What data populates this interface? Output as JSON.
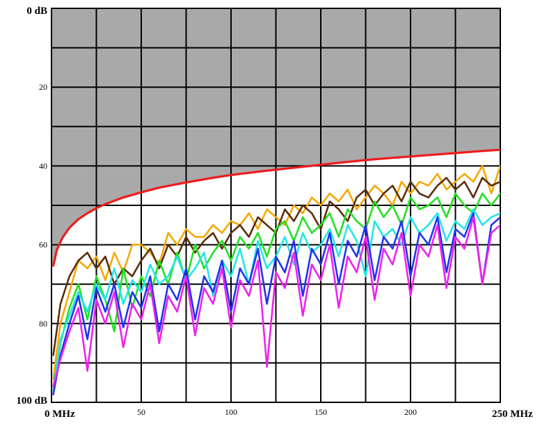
{
  "chart_data": {
    "type": "line",
    "title": "",
    "xlabel": "",
    "ylabel": "",
    "x_unit": "MHz",
    "y_unit": "dB",
    "xlim": [
      0,
      250
    ],
    "ylim": [
      0,
      100
    ],
    "y_inverted": true,
    "grid": true,
    "legend": "none",
    "y_ticks": [
      {
        "value": 0,
        "label": "0 dB"
      },
      {
        "value": 20,
        "label": "20"
      },
      {
        "value": 40,
        "label": "40"
      },
      {
        "value": 60,
        "label": "60"
      },
      {
        "value": 80,
        "label": "80"
      },
      {
        "value": 100,
        "label": "100 dB"
      }
    ],
    "x_ticks": [
      {
        "value": 0,
        "label": "0 MHz"
      },
      {
        "value": 50,
        "label": "50"
      },
      {
        "value": 100,
        "label": "100"
      },
      {
        "value": 150,
        "label": "150"
      },
      {
        "value": 200,
        "label": "200"
      },
      {
        "value": 250,
        "label": "250 MHz"
      }
    ],
    "limit": {
      "color": "#ee1c1c",
      "x": [
        1,
        3,
        6,
        10,
        15,
        20,
        25,
        30,
        40,
        50,
        60,
        75,
        90,
        100,
        120,
        140,
        160,
        180,
        200,
        220,
        240,
        250
      ],
      "y": [
        65.3,
        61.3,
        58.3,
        55.7,
        53.5,
        52.0,
        50.7,
        49.7,
        48.0,
        46.7,
        45.5,
        44.2,
        43.0,
        42.3,
        41.2,
        40.2,
        39.2,
        38.3,
        37.6,
        36.9,
        36.2,
        35.9
      ]
    },
    "series": [
      {
        "color": "#f5a800",
        "x": [
          1,
          5,
          10,
          15,
          20,
          25,
          30,
          35,
          40,
          45,
          50,
          55,
          60,
          65,
          70,
          75,
          80,
          85,
          90,
          95,
          100,
          105,
          110,
          115,
          120,
          125,
          130,
          135,
          140,
          145,
          150,
          155,
          160,
          165,
          170,
          175,
          180,
          185,
          190,
          195,
          200,
          205,
          210,
          215,
          220,
          225,
          230,
          235,
          240,
          245,
          250
        ],
        "y": [
          94,
          80,
          72,
          64,
          66,
          63,
          69,
          62,
          67,
          60,
          60,
          62,
          65,
          57,
          60,
          56,
          58,
          58,
          55,
          57,
          54,
          55,
          52,
          56,
          51,
          53,
          55,
          50,
          52,
          48,
          50,
          47,
          49,
          46,
          51,
          48,
          45,
          47,
          50,
          44,
          47,
          44,
          45,
          42,
          46,
          44,
          42,
          44,
          40,
          47,
          40
        ]
      },
      {
        "color": "#5a2d0c",
        "x": [
          1,
          5,
          10,
          15,
          20,
          25,
          30,
          35,
          40,
          45,
          50,
          55,
          60,
          65,
          70,
          75,
          80,
          85,
          90,
          95,
          100,
          105,
          110,
          115,
          120,
          125,
          130,
          135,
          140,
          145,
          150,
          155,
          160,
          165,
          170,
          175,
          180,
          185,
          190,
          195,
          200,
          205,
          210,
          215,
          220,
          225,
          230,
          235,
          240,
          245,
          250
        ],
        "y": [
          88,
          75,
          68,
          64,
          62,
          66,
          63,
          70,
          66,
          68,
          64,
          61,
          66,
          60,
          63,
          58,
          62,
          59,
          57,
          61,
          57,
          55,
          58,
          53,
          55,
          57,
          51,
          54,
          50,
          52,
          56,
          49,
          51,
          54,
          48,
          46,
          50,
          47,
          45,
          49,
          44,
          47,
          48,
          45,
          43,
          46,
          44,
          48,
          43,
          45,
          44
        ]
      },
      {
        "color": "#22e022",
        "x": [
          1,
          5,
          10,
          15,
          20,
          25,
          30,
          35,
          40,
          45,
          50,
          55,
          60,
          65,
          70,
          75,
          80,
          85,
          90,
          95,
          100,
          105,
          110,
          115,
          120,
          125,
          130,
          135,
          140,
          145,
          150,
          155,
          160,
          165,
          170,
          175,
          180,
          185,
          190,
          195,
          200,
          205,
          210,
          215,
          220,
          225,
          230,
          235,
          240,
          245,
          250
        ],
        "y": [
          96,
          85,
          76,
          70,
          79,
          68,
          74,
          82,
          66,
          76,
          68,
          73,
          64,
          70,
          62,
          69,
          60,
          66,
          62,
          59,
          64,
          58,
          61,
          57,
          63,
          56,
          54,
          59,
          53,
          57,
          55,
          52,
          58,
          51,
          54,
          56,
          49,
          53,
          50,
          55,
          48,
          51,
          50,
          48,
          53,
          47,
          50,
          52,
          47,
          50,
          47
        ]
      },
      {
        "color": "#22e6e6",
        "x": [
          1,
          5,
          10,
          15,
          20,
          25,
          30,
          35,
          40,
          45,
          50,
          55,
          60,
          65,
          70,
          75,
          80,
          85,
          90,
          95,
          100,
          105,
          110,
          115,
          120,
          125,
          130,
          135,
          140,
          145,
          150,
          155,
          160,
          165,
          170,
          175,
          180,
          185,
          190,
          195,
          200,
          205,
          210,
          215,
          220,
          225,
          230,
          235,
          240,
          245,
          250
        ],
        "y": [
          97,
          84,
          78,
          72,
          77,
          70,
          74,
          66,
          75,
          69,
          72,
          65,
          70,
          68,
          63,
          69,
          66,
          62,
          73,
          64,
          68,
          61,
          70,
          59,
          66,
          63,
          58,
          65,
          57,
          62,
          60,
          56,
          63,
          55,
          59,
          68,
          54,
          58,
          56,
          60,
          53,
          57,
          55,
          52,
          59,
          54,
          56,
          51,
          55,
          53,
          52
        ]
      },
      {
        "color": "#2233ee",
        "x": [
          1,
          5,
          10,
          15,
          20,
          25,
          30,
          35,
          40,
          45,
          50,
          55,
          60,
          65,
          70,
          75,
          80,
          85,
          90,
          95,
          100,
          105,
          110,
          115,
          120,
          125,
          130,
          135,
          140,
          145,
          150,
          155,
          160,
          165,
          170,
          175,
          180,
          185,
          190,
          195,
          200,
          205,
          210,
          215,
          220,
          225,
          230,
          235,
          240,
          245,
          250
        ],
        "y": [
          98,
          88,
          80,
          73,
          84,
          71,
          77,
          70,
          81,
          72,
          76,
          68,
          82,
          70,
          74,
          66,
          79,
          68,
          72,
          64,
          77,
          66,
          70,
          61,
          75,
          63,
          67,
          59,
          73,
          61,
          65,
          57,
          70,
          59,
          63,
          55,
          69,
          58,
          61,
          54,
          68,
          57,
          60,
          53,
          67,
          56,
          58,
          52,
          70,
          55,
          53
        ]
      },
      {
        "color": "#ee22ee",
        "x": [
          1,
          5,
          10,
          15,
          20,
          25,
          30,
          35,
          40,
          45,
          50,
          55,
          60,
          65,
          70,
          75,
          80,
          85,
          90,
          95,
          100,
          105,
          110,
          115,
          120,
          125,
          130,
          135,
          140,
          145,
          150,
          155,
          160,
          165,
          170,
          175,
          180,
          185,
          190,
          195,
          200,
          205,
          210,
          215,
          220,
          225,
          230,
          235,
          240,
          245,
          250
        ],
        "y": [
          96,
          89,
          82,
          76,
          92,
          74,
          80,
          72,
          86,
          75,
          79,
          70,
          85,
          73,
          77,
          68,
          83,
          71,
          75,
          66,
          81,
          69,
          73,
          64,
          91,
          67,
          71,
          62,
          78,
          65,
          69,
          60,
          76,
          63,
          67,
          58,
          74,
          61,
          65,
          57,
          73,
          60,
          63,
          55,
          71,
          58,
          61,
          53,
          70,
          57,
          55
        ]
      }
    ]
  }
}
